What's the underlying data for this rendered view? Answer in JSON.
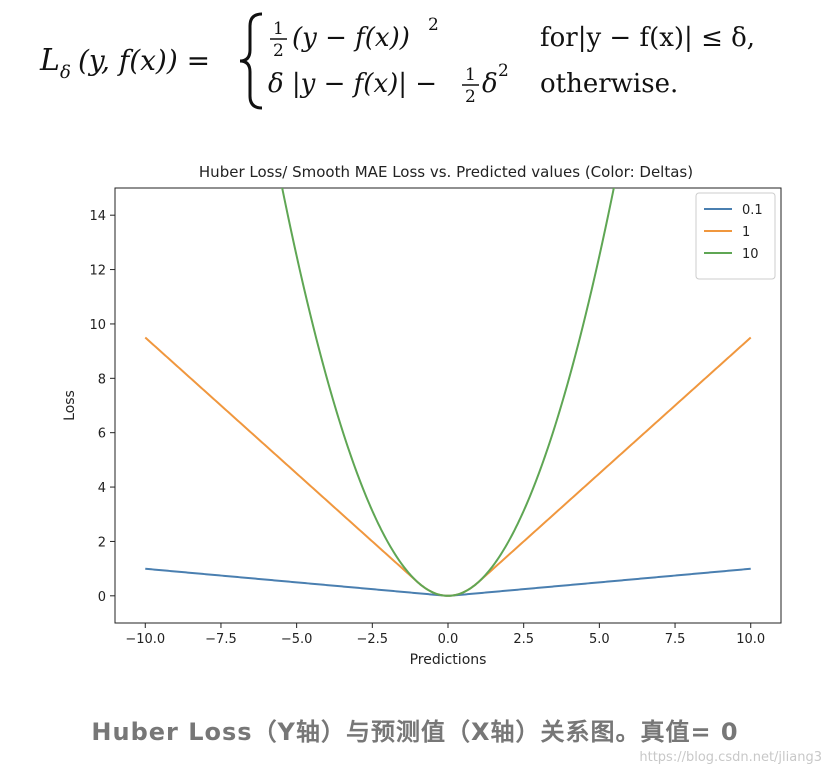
{
  "formula": {
    "lhs": "L",
    "lhs_sub": "δ",
    "lhs_args": "(y, f(x)) =",
    "case1_pre": "(y − f(x))",
    "case1_exp": "2",
    "case1_cond": "for|y − f(x)| ≤ δ,",
    "case2_pre": "δ |y − f(x)| −",
    "case2_post": "δ",
    "case2_exp": "2",
    "case2_cond": "otherwise.",
    "frac_num": "1",
    "frac_den": "2"
  },
  "chart_data": {
    "type": "line",
    "title": "Huber Loss/ Smooth MAE Loss vs. Predicted values (Color: Deltas)",
    "xlabel": "Predictions",
    "ylabel": "Loss",
    "xlim": [
      -11,
      11
    ],
    "ylim": [
      -1,
      15
    ],
    "x_range": [
      -10,
      10
    ],
    "xticks": [
      -10.0,
      -7.5,
      -5.0,
      -2.5,
      0.0,
      2.5,
      5.0,
      7.5,
      10.0
    ],
    "xtick_labels": [
      "−10.0",
      "−7.5",
      "−5.0",
      "−2.5",
      "0.0",
      "2.5",
      "5.0",
      "7.5",
      "10.0"
    ],
    "yticks": [
      0,
      2,
      4,
      6,
      8,
      10,
      12,
      14
    ],
    "ytick_labels": [
      "0",
      "2",
      "4",
      "6",
      "8",
      "10",
      "12",
      "14"
    ],
    "legend_position": "top-right",
    "series": [
      {
        "name": "0.1",
        "delta": 0.1,
        "color": "#4a7fb0"
      },
      {
        "name": "1",
        "delta": 1,
        "color": "#f0973e"
      },
      {
        "name": "10",
        "delta": 10,
        "color": "#5fa654"
      }
    ]
  },
  "caption": "Huber Loss（Y轴）与预测值（X轴）关系图。真值= 0",
  "watermark": "https://blog.csdn.net/jliang3"
}
